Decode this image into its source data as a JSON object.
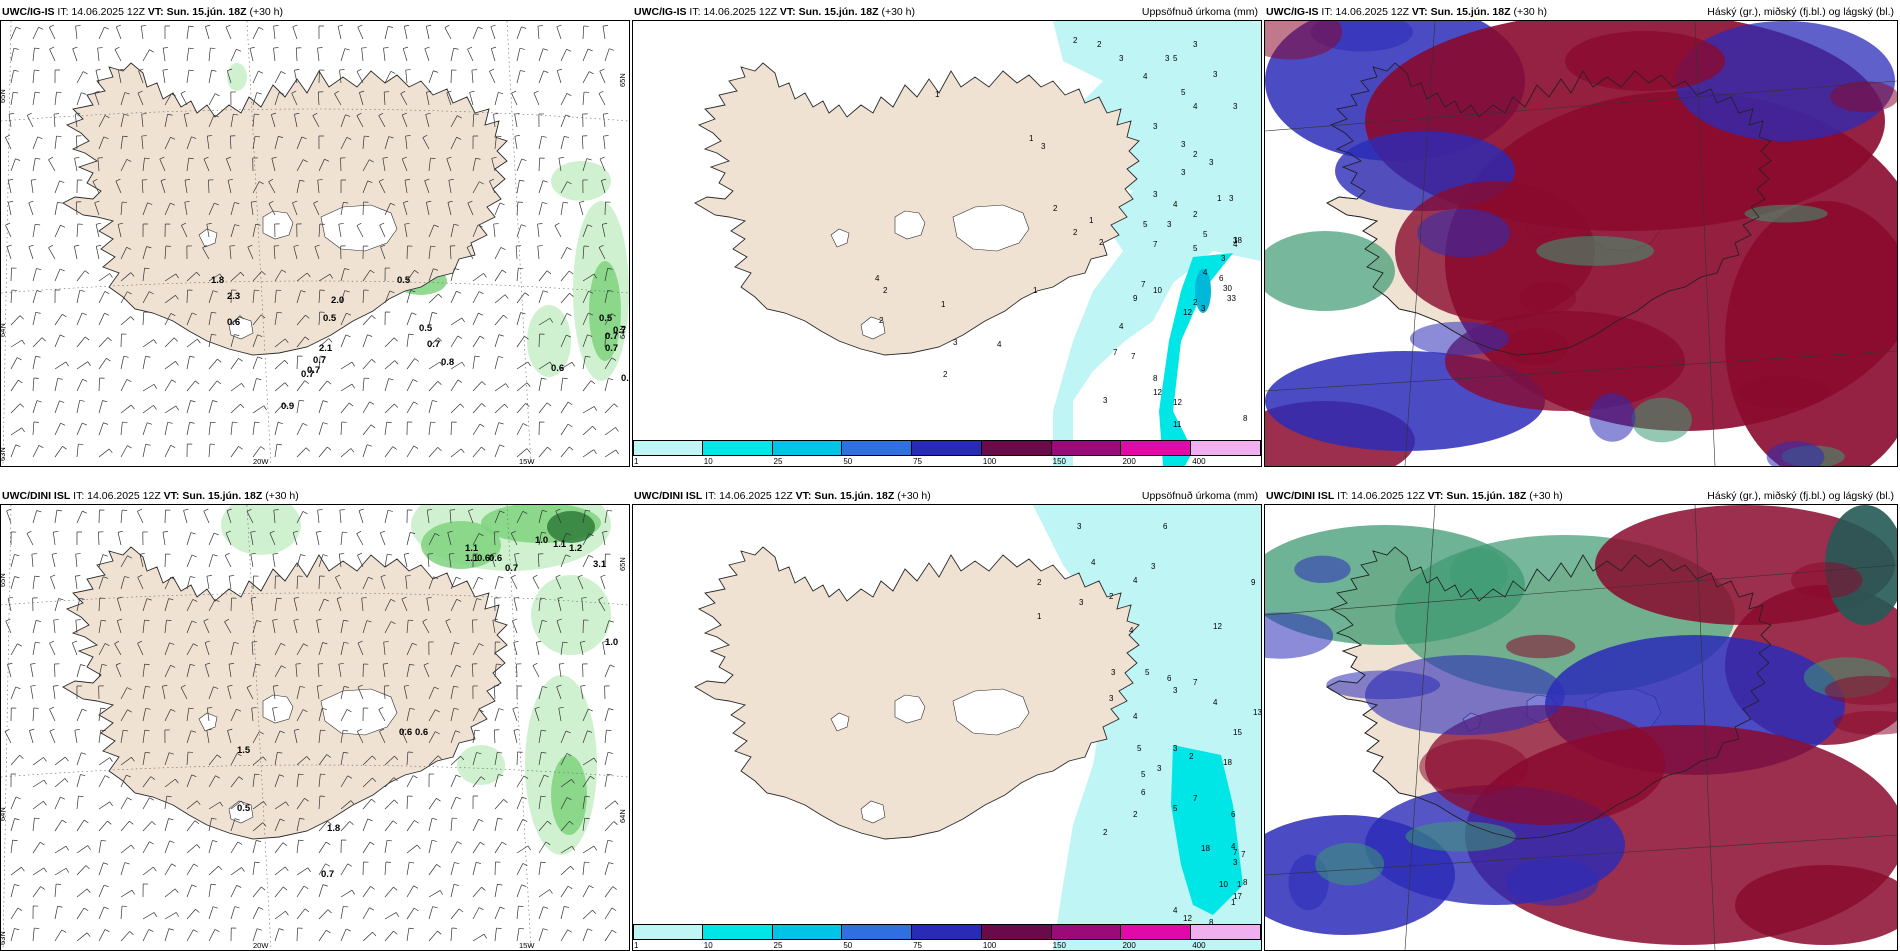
{
  "colors": {
    "land": "#efe2d3",
    "coast": "#2a2a2a",
    "precip_light": "#bff5f5",
    "precip_mid": "#00e6e6",
    "precip_dark": "#00b8d8",
    "green_light": "#c8efc8",
    "green_mid": "#7fd37f",
    "green_dark": "#2e7d3a",
    "cloud_high": "#3d9a72",
    "cloud_mid": "#2b2bb8",
    "cloud_low": "#8a0a2e"
  },
  "rows": [
    {
      "model": "UWC/IG-IS",
      "it": "IT: 14.06.2025 12Z",
      "vt_label": "VT:",
      "vt": "Sun. 15.jún. 18Z",
      "lead": "(+30 h)",
      "panels": [
        {
          "title_right": "",
          "lat_labels": [
            "65N",
            "64N",
            "63N"
          ],
          "lat_labels_right": [
            "65N",
            "64N"
          ],
          "lon_labels": [
            "20W",
            "15W"
          ],
          "values": [
            "1.8",
            "2.3",
            "0.6",
            "2.0",
            "0.5",
            "2.1",
            "0.7",
            "0.7",
            "0.9",
            "0.7",
            "0.5",
            "0.7",
            "0.8",
            "0.5",
            "0.7",
            "0.7",
            "0.7",
            "0.6",
            "0.8",
            "0.5"
          ]
        },
        {
          "title_right": "Uppsöfnuð úrkoma (mm)",
          "values": [
            "1",
            "1",
            "4",
            "2",
            "2",
            "1",
            "3",
            "3",
            "2",
            "2",
            "1",
            "2",
            "4",
            "1",
            "4",
            "2",
            "2",
            "2",
            "3",
            "4",
            "3",
            "5",
            "4",
            "3",
            "3",
            "2",
            "3",
            "3",
            "3",
            "4",
            "2",
            "1",
            "5",
            "4",
            "3",
            "4",
            "6",
            "3",
            "5",
            "3",
            "2",
            "3",
            "5",
            "7",
            "3",
            "3",
            "3",
            "5",
            "7",
            "10",
            "9",
            "3",
            "18",
            "30",
            "33",
            "12",
            "7",
            "7",
            "8",
            "3",
            "12",
            "12",
            "11",
            "8"
          ],
          "colorbar": [
            "1",
            "10",
            "25",
            "50",
            "75",
            "100",
            "150",
            "200",
            "400"
          ]
        },
        {
          "title_right": "Háský (gr.), miðský (fj.bl.) og lágský (bl.)"
        }
      ]
    },
    {
      "model": "UWC/DINI ISL",
      "it": "IT: 14.06.2025 12Z",
      "vt_label": "VT:",
      "vt": "Sun. 15.jún. 18Z",
      "lead": "(+30 h)",
      "panels": [
        {
          "title_right": "",
          "lat_labels": [
            "65N",
            "64N",
            "63N"
          ],
          "lat_labels_right": [
            "65N",
            "64N"
          ],
          "lon_labels": [
            "20W",
            "15W"
          ],
          "values": [
            "1.1",
            "1.1",
            "0.6",
            "0.6",
            "1.0",
            "1.1",
            "1.2",
            "3.1",
            "0.7",
            "1.0",
            "0.6",
            "0.6",
            "1.5",
            "0.5",
            "1.8",
            "0.7"
          ]
        },
        {
          "title_right": "Uppsöfnuð úrkoma (mm)",
          "values": [
            "3",
            "6",
            "4",
            "3",
            "4",
            "2",
            "3",
            "2",
            "4",
            "1",
            "3",
            "5",
            "4",
            "3",
            "6",
            "3",
            "5",
            "5",
            "3",
            "2",
            "6",
            "3",
            "5",
            "7",
            "6",
            "4",
            "7",
            "10",
            "4",
            "12",
            "8",
            "1",
            "1",
            "3",
            "9",
            "12",
            "15",
            "13",
            "4",
            "7",
            "18",
            "7",
            "18",
            "8",
            "17",
            "2",
            "2",
            "8",
            "11",
            "12",
            "1"
          ],
          "colorbar": [
            "1",
            "10",
            "25",
            "50",
            "75",
            "100",
            "150",
            "200",
            "400"
          ]
        },
        {
          "title_right": "Háský (gr.), miðský (fj.bl.) og lágský (bl.)"
        }
      ]
    }
  ]
}
